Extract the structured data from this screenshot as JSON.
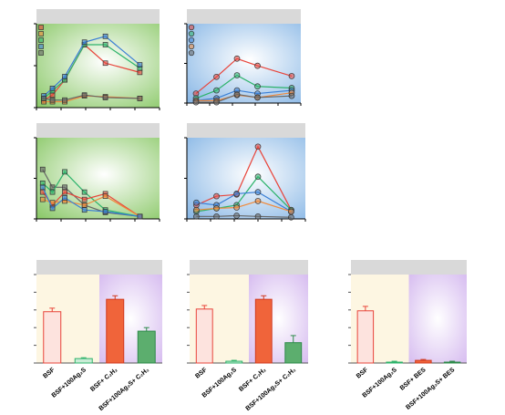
{
  "chart_data": [
    {
      "type": "line",
      "marker": "square",
      "xlim": [
        0,
        10
      ],
      "ylim": [
        0,
        100
      ],
      "xticks": [
        0,
        2,
        4,
        6,
        8,
        10
      ],
      "yticks": [
        0,
        50,
        100
      ],
      "background": "green",
      "x": [
        0.6,
        1.3,
        2.3,
        3.9,
        5.6,
        8.4
      ],
      "series": [
        {
          "color": "#e8443a",
          "values": [
            9,
            15,
            33,
            75,
            53,
            42
          ]
        },
        {
          "color": "#f08a3c",
          "values": [
            7,
            7,
            7,
            14,
            13,
            11
          ]
        },
        {
          "color": "#2db36b",
          "values": [
            11,
            20,
            33,
            75,
            75,
            47
          ]
        },
        {
          "color": "#3a7fd5",
          "values": [
            14,
            23,
            37,
            78,
            85,
            51
          ]
        },
        {
          "color": "#666666",
          "values": [
            11,
            9,
            9,
            15,
            12,
            11
          ]
        }
      ]
    },
    {
      "type": "line",
      "marker": "circle",
      "xlim": [
        0,
        10
      ],
      "ylim": [
        0,
        100
      ],
      "xticks": [
        0,
        2,
        4,
        6,
        8,
        10
      ],
      "yticks": [
        0,
        50,
        100
      ],
      "background": "blue",
      "x": [
        0.8,
        2.6,
        4.4,
        6.2,
        9.2
      ],
      "series": [
        {
          "color": "#e8443a",
          "values": [
            12,
            33,
            56,
            47,
            34
          ]
        },
        {
          "color": "#2db36b",
          "values": [
            6,
            16,
            35,
            21,
            19
          ]
        },
        {
          "color": "#3a7fd5",
          "values": [
            3,
            6,
            16,
            12,
            16
          ]
        },
        {
          "color": "#f08a3c",
          "values": [
            3,
            3,
            10,
            7,
            13
          ]
        },
        {
          "color": "#666666",
          "values": [
            1,
            1,
            11,
            7,
            9
          ]
        }
      ]
    },
    {
      "type": "line",
      "marker": "square",
      "xlim": [
        0,
        10
      ],
      "ylim": [
        0,
        100
      ],
      "xticks": [
        0,
        2,
        4,
        6,
        8,
        10
      ],
      "yticks": [
        0,
        50,
        100
      ],
      "background": "green",
      "x": [
        0.5,
        1.3,
        2.3,
        3.9,
        5.6,
        8.4
      ],
      "series": [
        {
          "color": "#666666",
          "values": [
            61,
            39,
            39,
            17,
            8,
            3
          ]
        },
        {
          "color": "#2db36b",
          "values": [
            44,
            33,
            58,
            33,
            11,
            3
          ]
        },
        {
          "color": "#e8443a",
          "values": [
            33,
            17,
            33,
            24,
            31,
            3
          ]
        },
        {
          "color": "#f08a3c",
          "values": [
            24,
            20,
            22,
            17,
            28,
            3
          ]
        },
        {
          "color": "#3a7fd5",
          "values": [
            39,
            13,
            26,
            11,
            9,
            3
          ]
        }
      ]
    },
    {
      "type": "line",
      "marker": "circle",
      "xlim": [
        0,
        10
      ],
      "ylim": [
        0,
        100
      ],
      "xticks": [
        0,
        2,
        4,
        6,
        8,
        10
      ],
      "yticks": [
        0,
        50,
        100
      ],
      "background": "blue",
      "x": [
        0.8,
        2.5,
        4.2,
        6.0,
        8.8
      ],
      "series": [
        {
          "color": "#e8443a",
          "values": [
            17,
            28,
            30,
            89,
            11
          ]
        },
        {
          "color": "#2db36b",
          "values": [
            9,
            13,
            17,
            52,
            11
          ]
        },
        {
          "color": "#3a7fd5",
          "values": [
            20,
            17,
            31,
            33,
            9
          ]
        },
        {
          "color": "#f08a3c",
          "values": [
            11,
            13,
            14,
            22,
            9
          ]
        },
        {
          "color": "#666666",
          "values": [
            3,
            3,
            4,
            3,
            2
          ]
        }
      ]
    },
    {
      "type": "bar",
      "ylim": [
        0,
        100
      ],
      "yticks": [
        0,
        20,
        40,
        60,
        80,
        100
      ],
      "categories": [
        "BSF",
        "BSF+100Ag₂S",
        "BSF+ C₂H₂",
        "BSF+100Ag₂S+ C₂H₂"
      ],
      "values": [
        58,
        5,
        72,
        36
      ],
      "errors": [
        4,
        1,
        4,
        4
      ],
      "colors": [
        "#fde3de",
        "#c9ecd6",
        "#f0643a",
        "#5cae6e"
      ],
      "edgecolors": [
        "#e8443a",
        "#2db36b",
        "#d03a20",
        "#2d8a4a"
      ]
    },
    {
      "type": "bar",
      "ylim": [
        0,
        100
      ],
      "yticks": [
        0,
        20,
        40,
        60,
        80,
        100
      ],
      "categories": [
        "BSF",
        "BSF+100Ag₂S",
        "BSF+ C₂H₂",
        "BSF+100Ag₂S+ C₂H₂"
      ],
      "values": [
        61,
        2,
        72,
        23
      ],
      "errors": [
        4,
        1,
        4,
        8
      ],
      "colors": [
        "#fde3de",
        "#c9ecd6",
        "#f0643a",
        "#5cae6e"
      ],
      "edgecolors": [
        "#e8443a",
        "#2db36b",
        "#d03a20",
        "#2d8a4a"
      ]
    },
    {
      "type": "bar",
      "ylim": [
        0,
        100
      ],
      "yticks": [
        0,
        20,
        40,
        60,
        80,
        100
      ],
      "categories": [
        "BSF",
        "BSF+100Ag₂S",
        "BSF+ BES",
        "BSF+100Ag₂S+ BES"
      ],
      "values": [
        59,
        1,
        3,
        1
      ],
      "errors": [
        5,
        1,
        1,
        1
      ],
      "colors": [
        "#fde3de",
        "#c9ecd6",
        "#f0643a",
        "#5cae6e"
      ],
      "edgecolors": [
        "#e8443a",
        "#2db36b",
        "#d03a20",
        "#2d8a4a"
      ]
    }
  ]
}
